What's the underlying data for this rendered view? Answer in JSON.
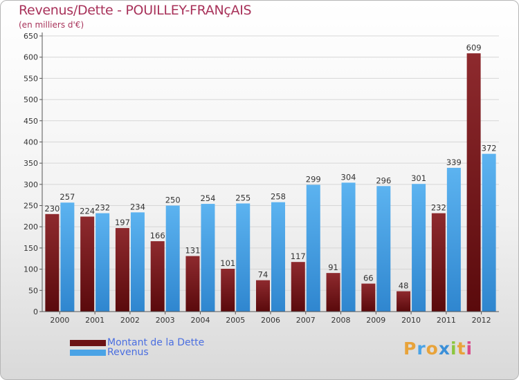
{
  "header": {
    "title": "Revenus/Dette - POUILLEY-FRANçAIS",
    "subtitle": "(en milliers d'€)"
  },
  "chart_data": {
    "type": "bar",
    "title": "Revenus/Dette - POUILLEY-FRANçAIS",
    "subtitle": "(en milliers d'€)",
    "categories": [
      "2000",
      "2001",
      "2002",
      "2003",
      "2004",
      "2005",
      "2006",
      "2007",
      "2008",
      "2009",
      "2010",
      "2011",
      "2012"
    ],
    "series": [
      {
        "name": "Montant de la Dette",
        "color": "#7a1a1e",
        "values": [
          230,
          224,
          197,
          166,
          131,
          101,
          74,
          117,
          91,
          66,
          48,
          232,
          609
        ]
      },
      {
        "name": "Revenus",
        "color": "#4aa3e6",
        "values": [
          257,
          232,
          234,
          250,
          254,
          255,
          258,
          299,
          304,
          296,
          301,
          339,
          372
        ]
      }
    ],
    "ylim": [
      0,
      650
    ],
    "yticks": [
      0,
      50,
      100,
      150,
      200,
      250,
      300,
      350,
      400,
      450,
      500,
      550,
      600,
      650
    ],
    "grid": true,
    "legend_position": "bottom-left"
  },
  "legend": {
    "items": [
      {
        "label": "Montant de la Dette",
        "color": "#6b1214"
      },
      {
        "label": "Revenus",
        "color": "#4aa3e6"
      }
    ]
  },
  "logo": {
    "letters": [
      "P",
      "r",
      "o",
      "x",
      "i",
      "t",
      "i"
    ],
    "colors": [
      "#e8a33a",
      "#4aa3e6",
      "#e8a33a",
      "#3a8fd8",
      "#8cc63f",
      "#e8a33a",
      "#d94a8c"
    ]
  }
}
